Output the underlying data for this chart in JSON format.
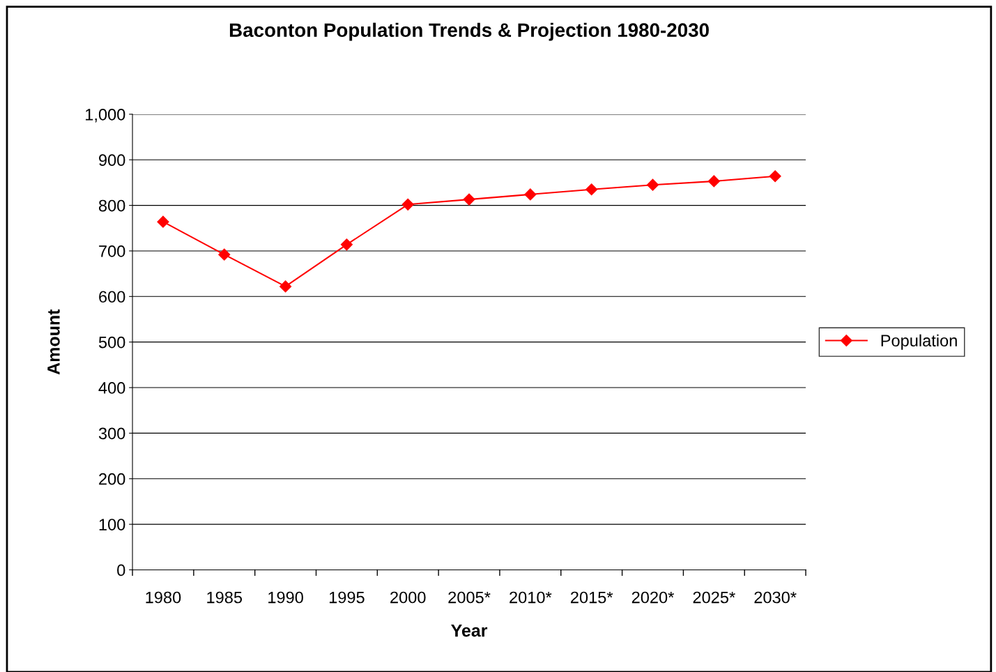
{
  "chart_data": {
    "type": "line",
    "title": "Baconton Population Trends & Projection 1980-2030",
    "xlabel": "Year",
    "ylabel": "Amount",
    "categories": [
      "1980",
      "1985",
      "1990",
      "1995",
      "2000",
      "2005*",
      "2010*",
      "2015*",
      "2020*",
      "2025*",
      "2030*"
    ],
    "series": [
      {
        "name": "Population",
        "color": "#ff0000",
        "values": [
          764,
          692,
          622,
          714,
          802,
          813,
          824,
          835,
          845,
          853,
          864
        ]
      }
    ],
    "ylim": [
      0,
      1000
    ],
    "yticks": [
      0,
      100,
      200,
      300,
      400,
      500,
      600,
      700,
      800,
      900,
      {
        "value": 1000,
        "label": "1,000"
      }
    ],
    "grid": "y",
    "legend": "right",
    "marker": "diamond",
    "line_style": "solid"
  }
}
